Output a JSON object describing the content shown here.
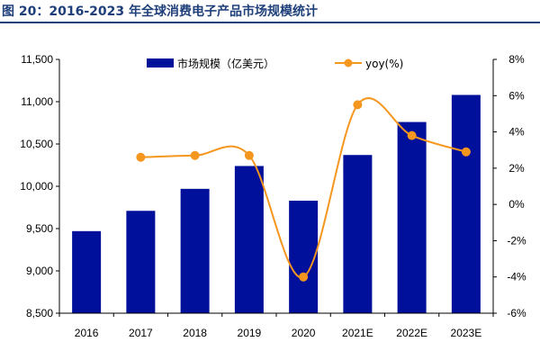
{
  "figure_title": "图 20：2016-2023 年全球消费电子产品市场规模统计",
  "colors": {
    "bar": "#00109a",
    "line": "#f5961e",
    "title": "#1f3f7a"
  },
  "chart_data": {
    "type": "bar",
    "categories": [
      "2016",
      "2017",
      "2018",
      "2019",
      "2020",
      "2021E",
      "2022E",
      "2023E"
    ],
    "series": [
      {
        "name": "市场规模（亿美元）",
        "type": "bar",
        "axis": "left",
        "values": [
          9470,
          9710,
          9970,
          10240,
          9830,
          10370,
          10760,
          11080
        ]
      },
      {
        "name": "yoy(%)",
        "type": "line",
        "axis": "right",
        "smooth": true,
        "values": [
          null,
          2.6,
          2.7,
          2.7,
          -4.0,
          5.5,
          3.8,
          2.9
        ]
      }
    ],
    "y_left": {
      "min": 8500,
      "max": 11500,
      "step": 500,
      "tick_labels": [
        "8,500",
        "9,000",
        "9,500",
        "10,000",
        "10,500",
        "11,000",
        "11,500"
      ]
    },
    "y_right": {
      "min": -6,
      "max": 8,
      "step": 2,
      "tick_labels": [
        "-6%",
        "-4%",
        "-2%",
        "0%",
        "2%",
        "4%",
        "6%",
        "8%"
      ]
    },
    "legend_labels": [
      "市场规模（亿美元）",
      "yoy(%)"
    ],
    "legend_position": "top",
    "grid": false
  }
}
